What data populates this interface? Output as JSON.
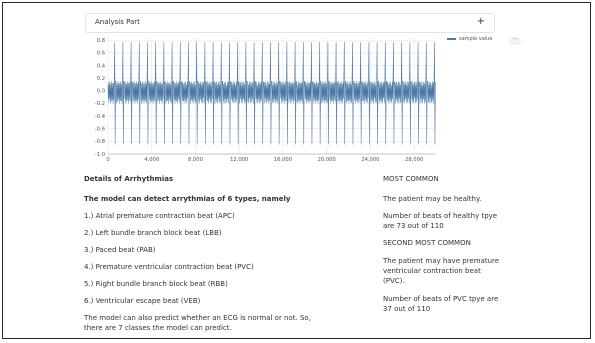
{
  "expander": {
    "label": "Analysis Part",
    "toggle": "+"
  },
  "chart_data": {
    "type": "line",
    "legend": [
      "sample value"
    ],
    "x_ticks": [
      0,
      4000,
      8000,
      12000,
      16000,
      20000,
      24000,
      28000
    ],
    "x_tick_labels": [
      "0",
      "4,000",
      "8,000",
      "12,000",
      "16,000",
      "20,000",
      "24,000",
      "28,000"
    ],
    "y_ticks": [
      -1.0,
      -0.8,
      -0.6,
      -0.4,
      -0.2,
      0.0,
      0.2,
      0.4,
      0.6,
      0.8
    ],
    "y_tick_labels": [
      "-1.0",
      "-0.8",
      "-0.6",
      "-0.4",
      "-0.2",
      "0.0",
      "0.2",
      "0.4",
      "0.6",
      "0.8"
    ],
    "xlim": [
      0,
      30000
    ],
    "ylim": [
      -1.0,
      0.85
    ],
    "series": [
      {
        "name": "sample value",
        "color": "#4c78a8",
        "cycles": 40,
        "baseline_band": [
          -0.2,
          0.15
        ],
        "peak": 0.77,
        "trough": -0.85
      }
    ],
    "grid": true
  },
  "menu_icon": "more-horizontal-icon",
  "left": {
    "heading": "Details of Arrhythmias",
    "intro": "The model can detect arrythmias of 6 types, namely",
    "items": [
      "1.) Atrial premature contraction beat (APC)",
      "2.) Left bundle branch block beat (LBB)",
      "3.) Paced beat (PAB)",
      "4.) Premature ventricular contraction beat (PVC)",
      "5.) Right bundle branch block beat (RBB)",
      "6.) Ventricular escape beat (VEB)"
    ],
    "note": [
      "The model can also predict whether an ECG is normal or not. So,",
      "there are 7 classes the model can predict."
    ]
  },
  "right": {
    "most_common_title": "MOST COMMON",
    "most_common_text": "The patient may be healthy.",
    "most_common_count": [
      "Number of beats of healthy tpye",
      "are 73 out of 110"
    ],
    "second_title": "SECOND MOST COMMON",
    "second_text": [
      "The patient may have premature",
      "ventricular contraction beat",
      "(PVC)."
    ],
    "second_count": [
      "Number of beats of PVC tpye are",
      "37 out of 110"
    ]
  }
}
